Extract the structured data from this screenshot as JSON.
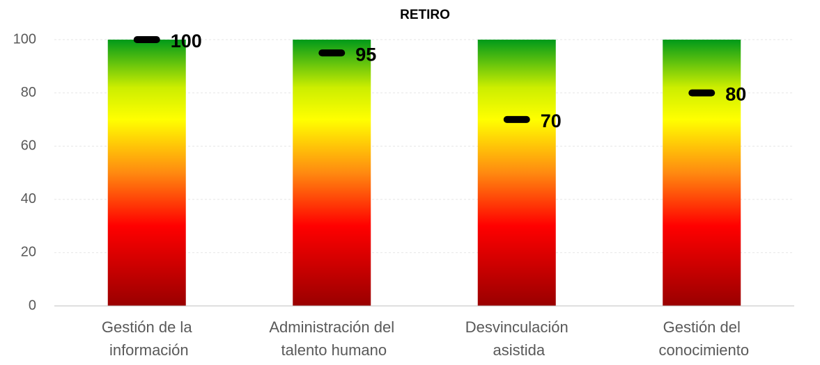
{
  "chart_data": {
    "type": "marker",
    "title": "RETIRO",
    "categories": [
      "Gestión de la información",
      "Administración del talento humano",
      "Desvinculación asistida",
      "Gestión del conocimiento"
    ],
    "values": [
      100,
      95,
      70,
      80
    ],
    "color": "#000000",
    "ylim": [
      0,
      100
    ],
    "yticks": [
      0,
      20,
      40,
      60,
      80,
      100
    ],
    "grid": true
  }
}
